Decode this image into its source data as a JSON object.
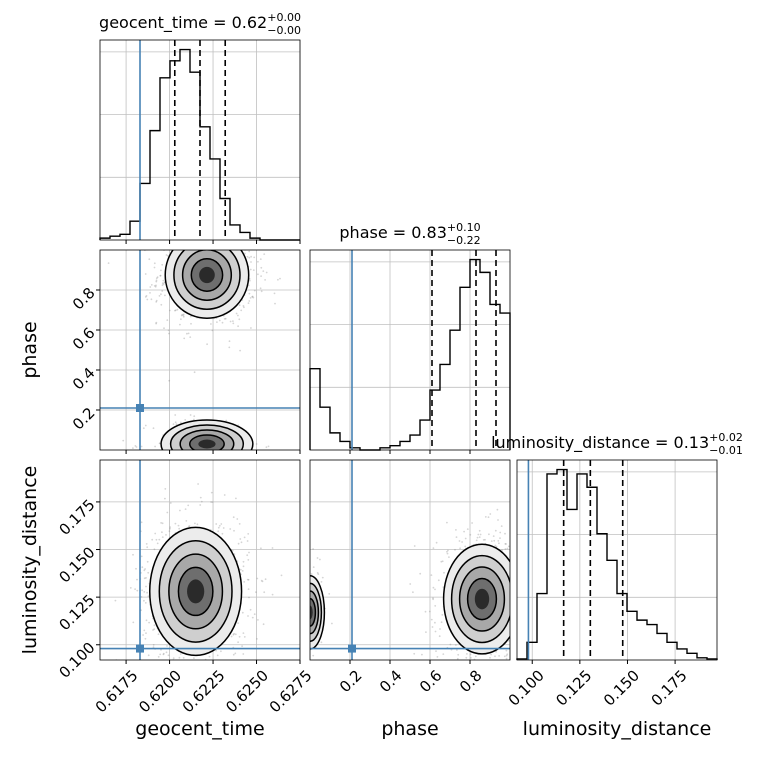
{
  "chart_data": {
    "type": "corner",
    "parameters": [
      "geocent_time",
      "phase",
      "luminosity_distance"
    ],
    "truth": {
      "geocent_time": 0.6183,
      "phase": 0.21,
      "luminosity_distance": 0.098
    },
    "colors": {
      "truth": "#4682b4",
      "hist": "#000000",
      "grid": "#c0c0c0",
      "points": "#888888"
    },
    "grid": true,
    "marginals": [
      {
        "name": "geocent_time",
        "title_prefix": "geocent_time = 0.62",
        "title_sup": "+0.00",
        "title_sub": "−0.00",
        "range": [
          0.616,
          0.6275
        ],
        "quantiles": [
          0.6203,
          0.62175,
          0.6232
        ],
        "counts": [
          1,
          2,
          3,
          10,
          30,
          58,
          86,
          95,
          101,
          89,
          60,
          43,
          22,
          8,
          4,
          1,
          0,
          0,
          0,
          0
        ],
        "xticks": [
          "0.6175",
          "0.6200",
          "0.6225",
          "0.6250",
          "0.6275"
        ],
        "xtick_values": [
          0.6175,
          0.62,
          0.6225,
          0.625,
          0.6275
        ]
      },
      {
        "name": "phase",
        "title_prefix": "phase = 0.83",
        "title_sup": "+0.10",
        "title_sub": "−0.22",
        "range": [
          0.0,
          1.0
        ],
        "quantiles": [
          0.61,
          0.83,
          0.93
        ],
        "counts": [
          38,
          20,
          8,
          4,
          1,
          0,
          0,
          1,
          2,
          4,
          7,
          14,
          28,
          40,
          56,
          76,
          89,
          83,
          68,
          64
        ],
        "xticks": [
          "0.2",
          "0.4",
          "0.6",
          "0.8"
        ],
        "xtick_values": [
          0.2,
          0.4,
          0.6,
          0.8
        ]
      },
      {
        "name": "luminosity_distance",
        "title_prefix": "luminosity_distance = 0.13",
        "title_sup": "+0.02",
        "title_sub": "−0.01",
        "range": [
          0.092,
          0.197
        ],
        "quantiles": [
          0.1165,
          0.1305,
          0.1475
        ],
        "counts": [
          0.5,
          8,
          30,
          84,
          86,
          68,
          84,
          78,
          57,
          45,
          30,
          22,
          18,
          16,
          12,
          8,
          5,
          3,
          1,
          0.5
        ],
        "xticks": [
          "0.100",
          "0.125",
          "0.150",
          "0.175"
        ],
        "xtick_values": [
          0.1,
          0.125,
          0.15,
          0.175
        ]
      }
    ],
    "joint_panels": [
      {
        "x": "geocent_time",
        "y": "phase",
        "yticks": [
          "0.2",
          "0.4",
          "0.6",
          "0.8"
        ],
        "ytick_values": [
          0.2,
          0.4,
          0.6,
          0.8
        ],
        "modes": [
          {
            "cx": 0.62215,
            "cy": 0.875,
            "sx": 0.001,
            "sy": 0.09
          },
          {
            "cx": 0.62215,
            "cy": 0.03,
            "sx": 0.0011,
            "sy": 0.05
          }
        ]
      },
      {
        "x": "geocent_time",
        "y": "luminosity_distance",
        "yticks": [
          "0.100",
          "0.125",
          "0.150",
          "0.175"
        ],
        "ytick_values": [
          0.1,
          0.125,
          0.15,
          0.175
        ],
        "modes": [
          {
            "cx": 0.6215,
            "cy": 0.128,
            "sx": 0.0011,
            "sy": 0.014
          }
        ]
      },
      {
        "x": "phase",
        "y": "luminosity_distance",
        "modes": [
          {
            "cx": 0.86,
            "cy": 0.124,
            "sx": 0.08,
            "sy": 0.012
          },
          {
            "cx": 0.0,
            "cy": 0.117,
            "sx": 0.03,
            "sy": 0.008
          }
        ]
      }
    ]
  }
}
